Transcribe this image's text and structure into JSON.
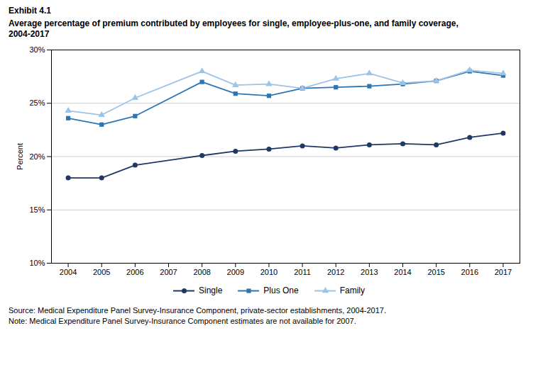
{
  "chart_data": {
    "type": "line",
    "title": "Exhibit 4.1",
    "subtitle": [
      "Average percentage of premium contributed by employees for single, employee-plus-one, and family coverage,",
      "2004-2017"
    ],
    "y_label": "Percent",
    "annotations": [
      "Source: Medical Expenditure Panel Survey-Insurance Component, private-sector establishments, 2004-2017.",
      "Note: Medical Expenditure Panel Survey-Insurance Component estimates are not available for 2007."
    ],
    "x": [
      2004,
      2005,
      2006,
      2008,
      2009,
      2010,
      2011,
      2012,
      2013,
      2014,
      2015,
      2016,
      2017
    ],
    "series": [
      {
        "name": "Single",
        "color": "#1f3864",
        "marker": "circle",
        "values": [
          18.0,
          18.0,
          19.2,
          20.1,
          20.5,
          20.7,
          21.0,
          20.8,
          21.1,
          21.2,
          21.1,
          21.8,
          22.2
        ]
      },
      {
        "name": "Plus One",
        "color": "#2e75b6",
        "marker": "square",
        "values": [
          23.6,
          23.0,
          23.8,
          27.0,
          25.9,
          25.7,
          26.4,
          26.5,
          26.6,
          26.8,
          27.1,
          28.0,
          27.6
        ]
      },
      {
        "name": "Family",
        "color": "#9dc3e6",
        "marker": "triangle",
        "values": [
          24.3,
          23.9,
          25.5,
          28.0,
          26.7,
          26.8,
          26.4,
          27.3,
          27.8,
          26.9,
          27.1,
          28.1,
          27.8
        ]
      }
    ],
    "xlim": [
      2003.5,
      2017.5
    ],
    "xticks": [
      2004,
      2005,
      2006,
      2007,
      2008,
      2009,
      2010,
      2011,
      2012,
      2013,
      2014,
      2015,
      2016,
      2017
    ],
    "ylim": [
      10,
      30
    ],
    "yticks": [
      {
        "value": 10,
        "label": "10%"
      },
      {
        "value": 15,
        "label": "15%"
      },
      {
        "value": 20,
        "label": "20%"
      },
      {
        "value": 25,
        "label": "25%"
      },
      {
        "value": 30,
        "label": "30%"
      }
    ],
    "grid": "y",
    "legend": "bottom"
  }
}
